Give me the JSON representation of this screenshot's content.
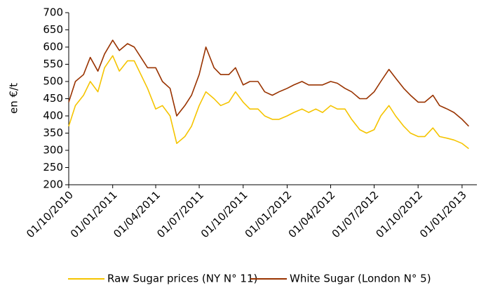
{
  "chart_data": {
    "type": "line",
    "y_label": "en €/t",
    "x": [
      "01/10/2010",
      "15/10/2010",
      "01/11/2010",
      "15/11/2010",
      "01/12/2010",
      "15/12/2010",
      "01/01/2011",
      "15/01/2011",
      "01/02/2011",
      "15/02/2011",
      "01/03/2011",
      "15/03/2011",
      "01/04/2011",
      "15/04/2011",
      "01/05/2011",
      "15/05/2011",
      "01/06/2011",
      "15/06/2011",
      "01/07/2011",
      "15/07/2011",
      "01/08/2011",
      "15/08/2011",
      "01/09/2011",
      "15/09/2011",
      "01/10/2011",
      "15/10/2011",
      "01/11/2011",
      "15/11/2011",
      "01/12/2011",
      "15/12/2011",
      "01/01/2012",
      "15/01/2012",
      "01/02/2012",
      "15/02/2012",
      "01/03/2012",
      "15/03/2012",
      "01/04/2012",
      "15/04/2012",
      "01/05/2012",
      "15/05/2012",
      "01/06/2012",
      "15/06/2012",
      "01/07/2012",
      "15/07/2012",
      "01/08/2012",
      "15/08/2012",
      "01/09/2012",
      "15/09/2012",
      "01/10/2012",
      "15/10/2012",
      "01/11/2012",
      "15/11/2012",
      "01/12/2012",
      "15/12/2012",
      "01/01/2013",
      "15/01/2013"
    ],
    "series": [
      {
        "name": "Raw Sugar prices (NY N° 11)",
        "color": "#f5c400",
        "values": [
          370,
          430,
          460,
          500,
          470,
          540,
          575,
          530,
          560,
          560,
          520,
          480,
          420,
          430,
          400,
          320,
          340,
          370,
          430,
          470,
          450,
          430,
          440,
          470,
          440,
          420,
          420,
          400,
          390,
          390,
          400,
          410,
          420,
          410,
          420,
          410,
          430,
          420,
          420,
          390,
          360,
          350,
          360,
          400,
          430,
          400,
          370,
          350,
          340,
          340,
          365,
          340,
          335,
          330,
          320,
          305
        ]
      },
      {
        "name": "White Sugar (London N° 5)",
        "color": "#993300",
        "values": [
          440,
          500,
          520,
          570,
          530,
          580,
          620,
          590,
          610,
          600,
          570,
          540,
          540,
          500,
          480,
          400,
          430,
          460,
          520,
          600,
          540,
          520,
          520,
          540,
          490,
          500,
          500,
          470,
          460,
          470,
          480,
          490,
          500,
          490,
          490,
          490,
          500,
          495,
          480,
          470,
          450,
          450,
          470,
          500,
          535,
          510,
          480,
          460,
          440,
          440,
          460,
          430,
          420,
          410,
          390,
          370
        ]
      }
    ],
    "xlim": [
      "01/10/2010",
      "01/02/2013"
    ],
    "xticks": [
      "01/10/2010",
      "01/01/2011",
      "01/04/2011",
      "01/07/2011",
      "01/10/2011",
      "01/01/2012",
      "01/04/2012",
      "01/07/2012",
      "01/10/2012",
      "01/01/2013"
    ],
    "ylim": [
      200,
      700
    ],
    "yticks": [
      200,
      250,
      300,
      350,
      400,
      450,
      500,
      550,
      600,
      650,
      700
    ],
    "legend": "bottom"
  }
}
